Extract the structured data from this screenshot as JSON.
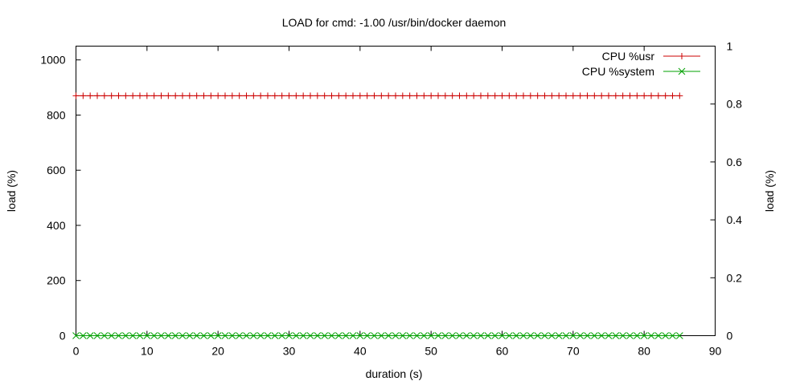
{
  "chart_data": {
    "type": "line",
    "title": "LOAD for cmd: -1.00 /usr/bin/docker daemon",
    "xlabel": "duration (s)",
    "ylabel": "load (%)",
    "y2label": "load (%)",
    "xlim": [
      0,
      90
    ],
    "ylim": [
      0,
      1050
    ],
    "y2lim": [
      0,
      1
    ],
    "x_ticks": [
      0,
      10,
      20,
      30,
      40,
      50,
      60,
      70,
      80,
      90
    ],
    "y_ticks": [
      0,
      200,
      400,
      600,
      800,
      1000
    ],
    "y2_ticks": [
      0,
      0.2,
      0.4,
      0.6,
      0.8,
      1
    ],
    "y2_tick_labels": [
      "0",
      "0.2",
      "0.4",
      "0.6",
      "0.8",
      "1"
    ],
    "grid": false,
    "legend_position": "top-right",
    "x": [
      0,
      1,
      2,
      3,
      4,
      5,
      6,
      7,
      8,
      9,
      10,
      11,
      12,
      13,
      14,
      15,
      16,
      17,
      18,
      19,
      20,
      21,
      22,
      23,
      24,
      25,
      26,
      27,
      28,
      29,
      30,
      31,
      32,
      33,
      34,
      35,
      36,
      37,
      38,
      39,
      40,
      41,
      42,
      43,
      44,
      45,
      46,
      47,
      48,
      49,
      50,
      51,
      52,
      53,
      54,
      55,
      56,
      57,
      58,
      59,
      60,
      61,
      62,
      63,
      64,
      65,
      66,
      67,
      68,
      69,
      70,
      71,
      72,
      73,
      74,
      75,
      76,
      77,
      78,
      79,
      80,
      81,
      82,
      83,
      84,
      85
    ],
    "series": [
      {
        "name": "CPU %usr",
        "color": "#cc0000",
        "marker": "plus",
        "value": 870
      },
      {
        "name": "CPU %system",
        "color": "#00a000",
        "marker": "cross",
        "value": 0
      }
    ]
  }
}
